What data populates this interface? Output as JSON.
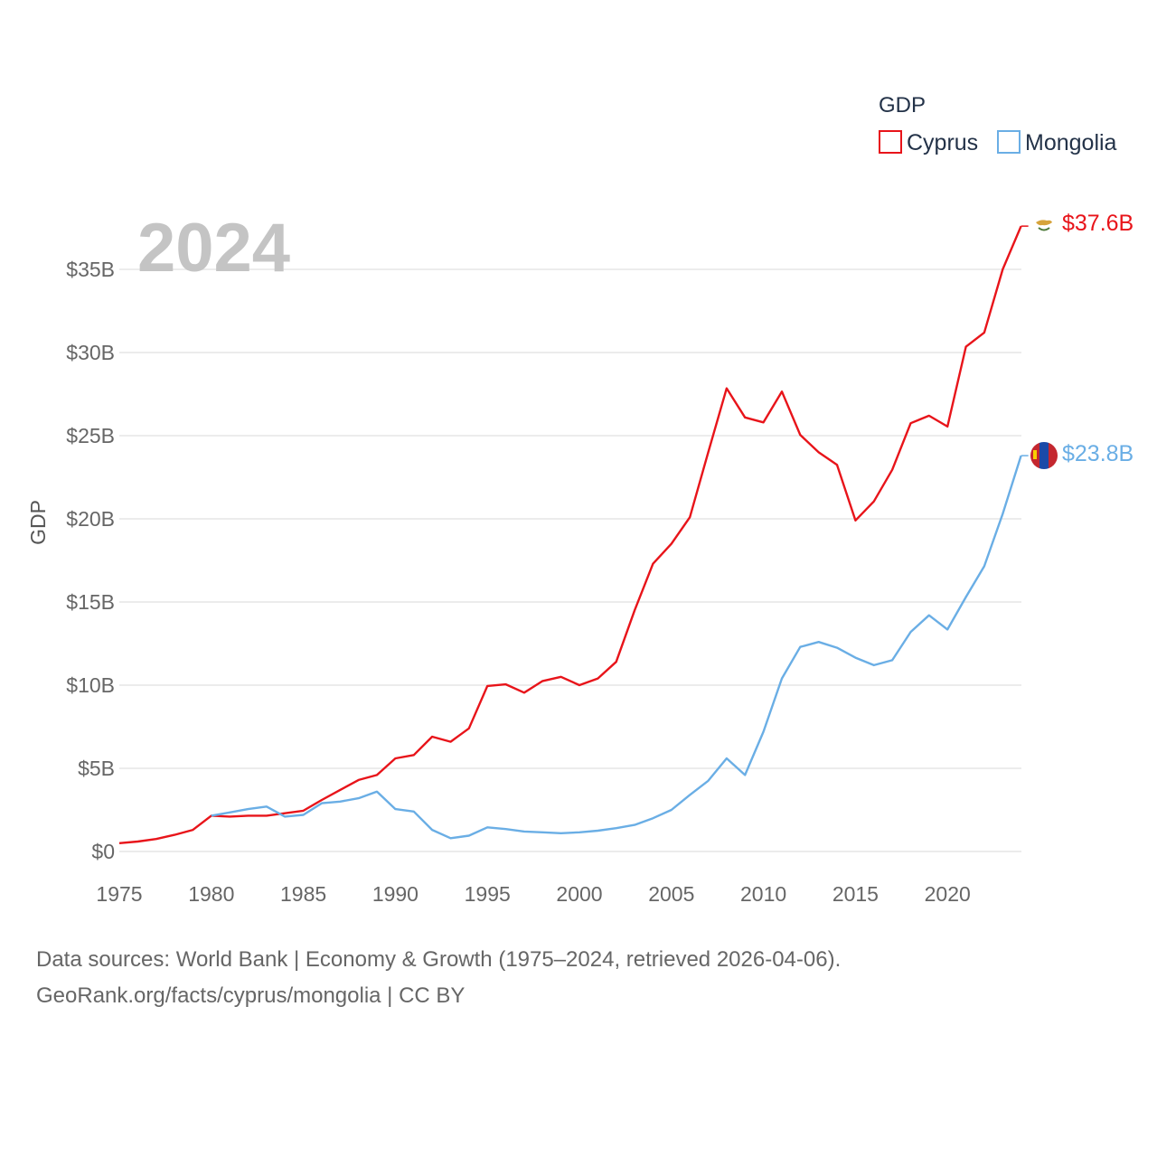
{
  "chart_data": {
    "type": "line",
    "title": "",
    "year_label": "2024",
    "ylabel": "GDP",
    "xlabel": "",
    "xlim": [
      1975,
      2024
    ],
    "ylim": [
      0,
      38
    ],
    "yticks": [
      {
        "value": 0,
        "label": "$0"
      },
      {
        "value": 5,
        "label": "$5B"
      },
      {
        "value": 10,
        "label": "$10B"
      },
      {
        "value": 15,
        "label": "$15B"
      },
      {
        "value": 20,
        "label": "$20B"
      },
      {
        "value": 25,
        "label": "$25B"
      },
      {
        "value": 30,
        "label": "$30B"
      },
      {
        "value": 35,
        "label": "$35B"
      }
    ],
    "xticks": [
      {
        "value": 1975,
        "label": "1975"
      },
      {
        "value": 1980,
        "label": "1980"
      },
      {
        "value": 1985,
        "label": "1985"
      },
      {
        "value": 1990,
        "label": "1990"
      },
      {
        "value": 1995,
        "label": "1995"
      },
      {
        "value": 2000,
        "label": "2000"
      },
      {
        "value": 2005,
        "label": "2005"
      },
      {
        "value": 2010,
        "label": "2010"
      },
      {
        "value": 2015,
        "label": "2015"
      },
      {
        "value": 2020,
        "label": "2020"
      }
    ],
    "grid": true,
    "legend": {
      "title": "GDP",
      "position": "top-right"
    },
    "series": [
      {
        "name": "Cyprus",
        "color": "#e8141a",
        "end_label": "$37.6B",
        "x": [
          1975,
          1976,
          1977,
          1978,
          1979,
          1980,
          1981,
          1982,
          1983,
          1984,
          1985,
          1986,
          1987,
          1988,
          1989,
          1990,
          1991,
          1992,
          1993,
          1994,
          1995,
          1996,
          1997,
          1998,
          1999,
          2000,
          2001,
          2002,
          2003,
          2004,
          2005,
          2006,
          2007,
          2008,
          2009,
          2010,
          2011,
          2012,
          2013,
          2014,
          2015,
          2016,
          2017,
          2018,
          2019,
          2020,
          2021,
          2022,
          2023,
          2024
        ],
        "values": [
          0.5,
          0.6,
          0.75,
          1.0,
          1.3,
          2.15,
          2.1,
          2.15,
          2.15,
          2.3,
          2.45,
          3.1,
          3.7,
          4.3,
          4.6,
          5.6,
          5.8,
          6.9,
          6.6,
          7.4,
          9.95,
          10.05,
          9.55,
          10.25,
          10.5,
          10.0,
          10.4,
          11.4,
          14.5,
          17.3,
          18.5,
          20.1,
          24.0,
          27.85,
          26.1,
          25.8,
          27.65,
          25.05,
          24.0,
          23.25,
          19.9,
          21.05,
          22.95,
          25.75,
          26.2,
          25.55,
          30.35,
          31.2,
          35.0,
          37.6
        ]
      },
      {
        "name": "Mongolia",
        "color": "#6aaee5",
        "end_label": "$23.8B",
        "x": [
          1980,
          1981,
          1982,
          1983,
          1984,
          1985,
          1986,
          1987,
          1988,
          1989,
          1990,
          1991,
          1992,
          1993,
          1994,
          1995,
          1996,
          1997,
          1998,
          1999,
          2000,
          2001,
          2002,
          2003,
          2004,
          2005,
          2006,
          2007,
          2008,
          2009,
          2010,
          2011,
          2012,
          2013,
          2014,
          2015,
          2016,
          2017,
          2018,
          2019,
          2020,
          2021,
          2022,
          2023,
          2024
        ],
        "values": [
          2.15,
          2.35,
          2.55,
          2.7,
          2.1,
          2.2,
          2.9,
          3.0,
          3.2,
          3.6,
          2.55,
          2.4,
          1.3,
          0.8,
          0.95,
          1.45,
          1.35,
          1.2,
          1.15,
          1.1,
          1.15,
          1.25,
          1.4,
          1.6,
          2.0,
          2.5,
          3.4,
          4.25,
          5.6,
          4.6,
          7.2,
          10.4,
          12.3,
          12.6,
          12.25,
          11.65,
          11.2,
          11.5,
          13.2,
          14.2,
          13.35,
          15.3,
          17.15,
          20.3,
          23.8
        ]
      }
    ]
  },
  "source": {
    "line1": "Data sources: World Bank | Economy & Growth (1975–2024, retrieved 2026-04-06).",
    "line2": "GeoRank.org/facts/cyprus/mongolia | CC BY"
  },
  "flags": {
    "cyprus": "cyprus-flag-icon",
    "mongolia": "mongolia-flag-icon"
  }
}
